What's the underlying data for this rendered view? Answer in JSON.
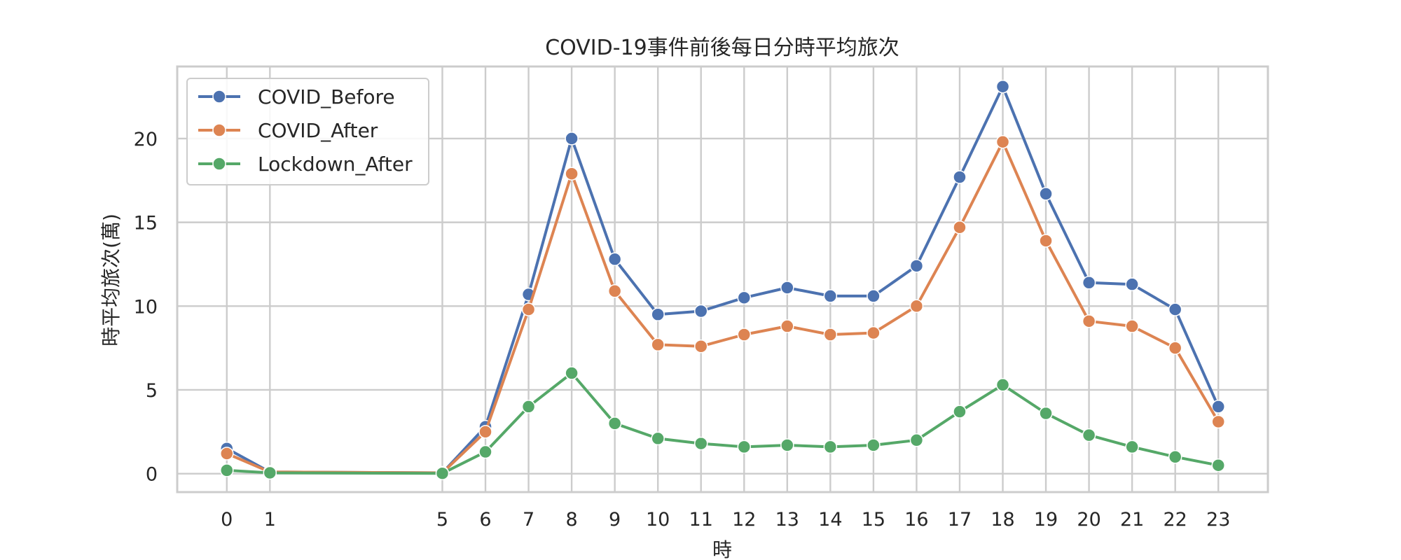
{
  "chart_data": {
    "type": "line",
    "title": "COVID-19事件前後每日分時平均旅次",
    "xlabel": "時",
    "ylabel": "時平均旅次(萬)",
    "x": [
      0,
      1,
      5,
      6,
      7,
      8,
      9,
      10,
      11,
      12,
      13,
      14,
      15,
      16,
      17,
      18,
      19,
      20,
      21,
      22,
      23
    ],
    "x_tick_labels": [
      "0",
      "1",
      "5",
      "6",
      "7",
      "8",
      "9",
      "10",
      "11",
      "12",
      "13",
      "14",
      "15",
      "16",
      "17",
      "18",
      "19",
      "20",
      "21",
      "22",
      "23"
    ],
    "y_ticks": [
      0,
      5,
      10,
      15,
      20
    ],
    "xlim": [
      -1.15,
      24.15
    ],
    "ylim": [
      -1.1,
      24.3
    ],
    "grid": true,
    "legend_position": "top-left",
    "series": [
      {
        "name": "COVID_Before",
        "color": "#4c72b0",
        "values": [
          1.5,
          0.1,
          0.05,
          2.8,
          10.7,
          20.0,
          12.8,
          9.5,
          9.7,
          10.5,
          11.1,
          10.6,
          10.6,
          12.4,
          17.7,
          23.1,
          16.7,
          11.4,
          11.3,
          9.8,
          4.0
        ]
      },
      {
        "name": "COVID_After",
        "color": "#dd8452",
        "values": [
          1.2,
          0.1,
          0.05,
          2.5,
          9.8,
          17.9,
          10.9,
          7.7,
          7.6,
          8.3,
          8.8,
          8.3,
          8.4,
          10.0,
          14.7,
          19.8,
          13.9,
          9.1,
          8.8,
          7.5,
          3.1
        ]
      },
      {
        "name": "Lockdown_After",
        "color": "#55a868",
        "values": [
          0.2,
          0.05,
          0.02,
          1.3,
          4.0,
          6.0,
          3.0,
          2.1,
          1.8,
          1.6,
          1.7,
          1.6,
          1.7,
          2.0,
          3.7,
          5.3,
          3.6,
          2.3,
          1.6,
          1.0,
          0.5
        ]
      }
    ]
  }
}
